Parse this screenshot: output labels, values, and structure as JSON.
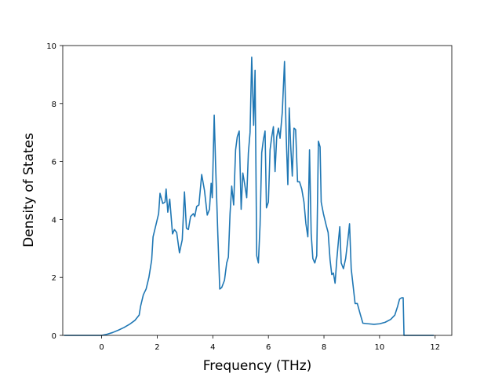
{
  "chart_data": {
    "type": "line",
    "xlabel": "Frequency (THz)",
    "ylabel": "Density of States",
    "xlim": [
      -1.4,
      12.6
    ],
    "ylim": [
      0,
      10
    ],
    "xticks": [
      0,
      2,
      4,
      6,
      8,
      10,
      12
    ],
    "yticks": [
      0,
      2,
      4,
      6,
      8,
      10
    ],
    "grid": false,
    "line_color": "#1f77b4",
    "series": [
      {
        "points": [
          [
            -1.35,
            0
          ],
          [
            -1.0,
            0
          ],
          [
            -0.5,
            0
          ],
          [
            0.0,
            0
          ],
          [
            0.2,
            0.04
          ],
          [
            0.4,
            0.1
          ],
          [
            0.6,
            0.18
          ],
          [
            0.8,
            0.27
          ],
          [
            1.0,
            0.38
          ],
          [
            1.2,
            0.52
          ],
          [
            1.35,
            0.7
          ],
          [
            1.4,
            1.0
          ],
          [
            1.5,
            1.4
          ],
          [
            1.6,
            1.6
          ],
          [
            1.7,
            2.0
          ],
          [
            1.8,
            2.6
          ],
          [
            1.85,
            3.4
          ],
          [
            1.95,
            3.8
          ],
          [
            2.05,
            4.2
          ],
          [
            2.1,
            4.9
          ],
          [
            2.2,
            4.55
          ],
          [
            2.28,
            4.6
          ],
          [
            2.32,
            5.05
          ],
          [
            2.38,
            4.25
          ],
          [
            2.45,
            4.7
          ],
          [
            2.55,
            3.5
          ],
          [
            2.62,
            3.65
          ],
          [
            2.7,
            3.55
          ],
          [
            2.8,
            2.85
          ],
          [
            2.9,
            3.3
          ],
          [
            2.98,
            4.95
          ],
          [
            3.05,
            3.7
          ],
          [
            3.12,
            3.65
          ],
          [
            3.2,
            4.1
          ],
          [
            3.3,
            4.2
          ],
          [
            3.35,
            4.1
          ],
          [
            3.42,
            4.45
          ],
          [
            3.5,
            4.5
          ],
          [
            3.6,
            5.55
          ],
          [
            3.7,
            5.0
          ],
          [
            3.8,
            4.15
          ],
          [
            3.88,
            4.35
          ],
          [
            3.94,
            5.25
          ],
          [
            3.98,
            4.75
          ],
          [
            4.05,
            7.6
          ],
          [
            4.1,
            5.9
          ],
          [
            4.18,
            3.5
          ],
          [
            4.25,
            1.6
          ],
          [
            4.32,
            1.65
          ],
          [
            4.42,
            1.9
          ],
          [
            4.5,
            2.5
          ],
          [
            4.56,
            2.7
          ],
          [
            4.62,
            4.2
          ],
          [
            4.68,
            5.15
          ],
          [
            4.75,
            4.5
          ],
          [
            4.82,
            6.4
          ],
          [
            4.88,
            6.85
          ],
          [
            4.95,
            7.05
          ],
          [
            5.02,
            4.35
          ],
          [
            5.08,
            5.6
          ],
          [
            5.15,
            5.2
          ],
          [
            5.22,
            4.75
          ],
          [
            5.28,
            6.3
          ],
          [
            5.34,
            7.0
          ],
          [
            5.4,
            9.6
          ],
          [
            5.47,
            7.25
          ],
          [
            5.52,
            9.15
          ],
          [
            5.58,
            2.75
          ],
          [
            5.64,
            2.5
          ],
          [
            5.7,
            3.8
          ],
          [
            5.76,
            6.3
          ],
          [
            5.82,
            6.75
          ],
          [
            5.88,
            7.05
          ],
          [
            5.93,
            4.4
          ],
          [
            6.0,
            4.6
          ],
          [
            6.06,
            6.4
          ],
          [
            6.12,
            6.85
          ],
          [
            6.18,
            7.2
          ],
          [
            6.24,
            5.65
          ],
          [
            6.3,
            6.85
          ],
          [
            6.36,
            7.15
          ],
          [
            6.42,
            6.8
          ],
          [
            6.5,
            7.7
          ],
          [
            6.58,
            9.45
          ],
          [
            6.64,
            6.9
          ],
          [
            6.7,
            5.2
          ],
          [
            6.75,
            7.85
          ],
          [
            6.8,
            6.6
          ],
          [
            6.86,
            5.5
          ],
          [
            6.92,
            7.15
          ],
          [
            6.98,
            7.1
          ],
          [
            7.05,
            5.3
          ],
          [
            7.12,
            5.3
          ],
          [
            7.2,
            5.05
          ],
          [
            7.28,
            4.6
          ],
          [
            7.35,
            3.85
          ],
          [
            7.42,
            3.4
          ],
          [
            7.48,
            6.4
          ],
          [
            7.54,
            3.5
          ],
          [
            7.6,
            2.65
          ],
          [
            7.67,
            2.5
          ],
          [
            7.74,
            2.75
          ],
          [
            7.8,
            6.7
          ],
          [
            7.86,
            6.5
          ],
          [
            7.9,
            4.6
          ],
          [
            7.98,
            4.2
          ],
          [
            8.08,
            3.8
          ],
          [
            8.15,
            3.55
          ],
          [
            8.22,
            2.6
          ],
          [
            8.28,
            2.1
          ],
          [
            8.34,
            2.15
          ],
          [
            8.4,
            1.8
          ],
          [
            8.46,
            2.6
          ],
          [
            8.52,
            3.25
          ],
          [
            8.57,
            3.75
          ],
          [
            8.62,
            2.5
          ],
          [
            8.7,
            2.3
          ],
          [
            8.78,
            2.65
          ],
          [
            8.86,
            3.3
          ],
          [
            8.92,
            3.85
          ],
          [
            8.98,
            2.3
          ],
          [
            9.05,
            1.7
          ],
          [
            9.12,
            1.1
          ],
          [
            9.2,
            1.1
          ],
          [
            9.3,
            0.75
          ],
          [
            9.4,
            0.42
          ],
          [
            9.6,
            0.4
          ],
          [
            9.8,
            0.38
          ],
          [
            10.0,
            0.4
          ],
          [
            10.2,
            0.45
          ],
          [
            10.4,
            0.55
          ],
          [
            10.55,
            0.7
          ],
          [
            10.65,
            1.0
          ],
          [
            10.72,
            1.25
          ],
          [
            10.8,
            1.3
          ],
          [
            10.85,
            1.3
          ],
          [
            10.88,
            0.0
          ],
          [
            11.2,
            0
          ],
          [
            11.6,
            0
          ],
          [
            11.95,
            0
          ]
        ]
      }
    ]
  }
}
